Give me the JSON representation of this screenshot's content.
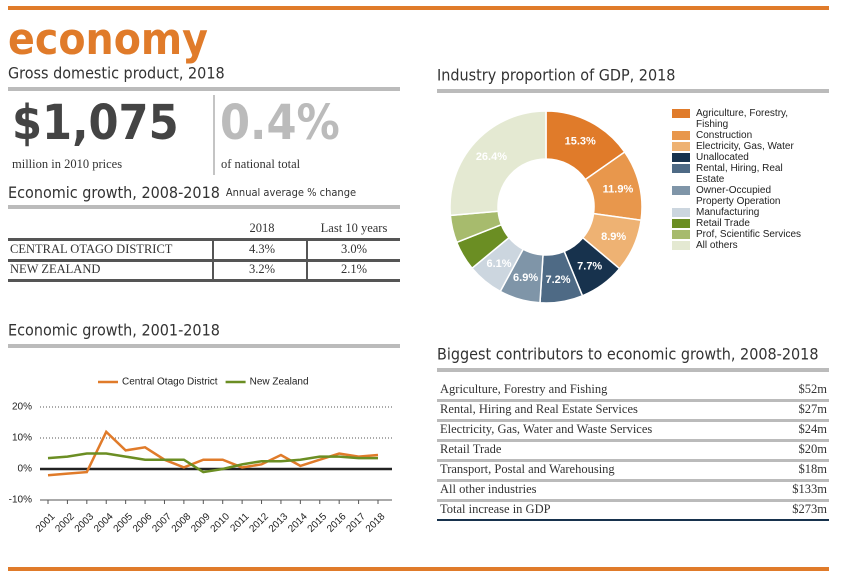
{
  "title": "economy",
  "gdp": {
    "heading": "Gross domestic product, 2018",
    "value": "$1,075",
    "value_caption": "million in 2010 prices",
    "share": "0.4%",
    "share_caption": "of national total"
  },
  "growth_table": {
    "heading": "Economic growth, 2008-2018",
    "subheading": "Annual average % change",
    "columns": [
      "2018",
      "Last 10 years"
    ],
    "rows": [
      [
        "CENTRAL OTAGO DISTRICT",
        "4.3%",
        "3.0%"
      ],
      [
        "NEW ZEALAND",
        "3.2%",
        "2.1%"
      ]
    ]
  },
  "chart_data": [
    {
      "type": "line",
      "title": "Economic growth, 2001-2018",
      "categories": [
        "2001",
        "2002",
        "2003",
        "2004",
        "2005",
        "2006",
        "2007",
        "2008",
        "2009",
        "2010",
        "2011",
        "2012",
        "2013",
        "2014",
        "2015",
        "2016",
        "2017",
        "2018"
      ],
      "series": [
        {
          "name": "Central Otago District",
          "color": "#e07b2a",
          "values": [
            -2,
            -1.5,
            -1,
            12,
            6,
            7,
            3,
            0.5,
            3,
            3,
            0.5,
            1.5,
            4.5,
            1,
            3,
            5,
            4,
            4.5
          ]
        },
        {
          "name": "New Zealand",
          "color": "#6b8e23",
          "values": [
            3.5,
            4,
            5,
            5,
            4,
            3,
            3,
            3,
            -1,
            0,
            1.5,
            2.5,
            2.5,
            3,
            4,
            4,
            3.5,
            3.5
          ]
        }
      ],
      "ylim": [
        -10,
        20
      ],
      "yticks": [
        {
          "value": -10,
          "label": "-10%"
        },
        {
          "value": 0,
          "label": "0%"
        },
        {
          "value": 10,
          "label": "10%"
        },
        {
          "value": 20,
          "label": "20%"
        }
      ],
      "grid": true,
      "legend": "top"
    },
    {
      "type": "pie",
      "title": "Industry proportion of GDP, 2018",
      "categories": [
        "Agriculture, Forestry, Fishing",
        "Construction",
        "Electricity, Gas, Water",
        "Unallocated",
        "Rental, Hiring, Real Estate",
        "Owner-Occupied Property Operation",
        "Manufacturing",
        "Retail Trade",
        "Prof, Scientific Services",
        "All others"
      ],
      "values": [
        15.3,
        11.9,
        8.9,
        7.7,
        7.2,
        6.9,
        6.1,
        5.0,
        4.6,
        26.4
      ],
      "value_labels": [
        "15.3%",
        "11.9%",
        "8.9%",
        "7.7%",
        "7.2%",
        "6.9%",
        "6.1%",
        null,
        null,
        "26.4%"
      ],
      "colors": [
        "#e07b2a",
        "#e8974c",
        "#eeb273",
        "#17324d",
        "#4e6a85",
        "#7f95a8",
        "#ccd6df",
        "#6b8e23",
        "#a7bb6d",
        "#e4e9d2"
      ],
      "legend": "right"
    }
  ],
  "contributors": {
    "heading": "Biggest contributors to economic growth, 2008-2018",
    "rows": [
      [
        "Agriculture, Forestry and Fishing",
        "$52m"
      ],
      [
        "Rental, Hiring and Real Estate Services",
        "$27m"
      ],
      [
        "Electricity, Gas, Water and Waste Services",
        "$24m"
      ],
      [
        "Retail Trade",
        "$20m"
      ],
      [
        "Transport, Postal and Warehousing",
        "$18m"
      ],
      [
        "All other industries",
        "$133m"
      ]
    ],
    "total": [
      "Total increase in GDP",
      "$273m"
    ]
  }
}
